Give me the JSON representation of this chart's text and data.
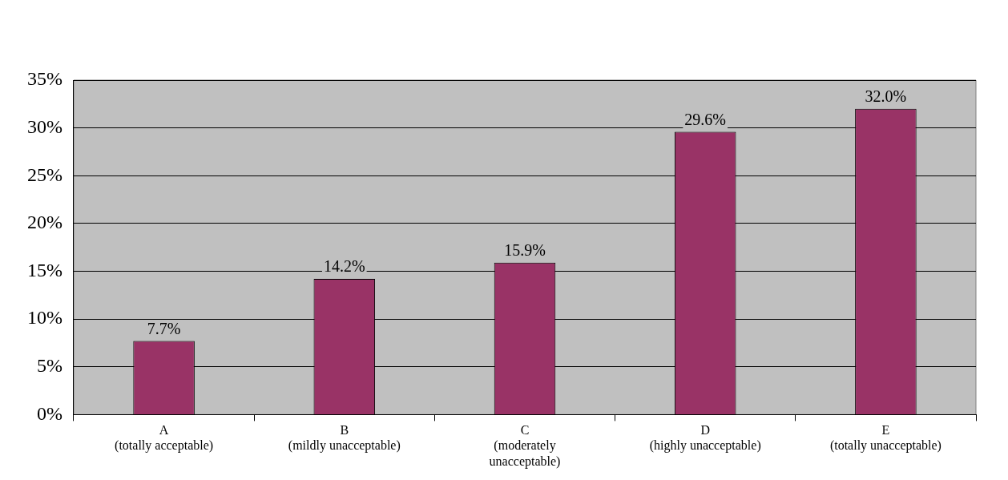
{
  "chart_data": {
    "type": "bar",
    "categories": [
      "A\n(totally acceptable)",
      "B\n(mildly unacceptable)",
      "C\n(moderately\nunacceptable)",
      "D\n(highly unacceptable)",
      "E\n(totally unacceptable)"
    ],
    "values": [
      7.7,
      14.2,
      15.9,
      29.6,
      32.0
    ],
    "value_labels": [
      "7.7%",
      "14.2%",
      "15.9%",
      "29.6%",
      "32.0%"
    ],
    "color": "#993366",
    "ylim": [
      0,
      35
    ],
    "yticks": [
      {
        "value": 0,
        "label": "0%"
      },
      {
        "value": 5,
        "label": "5%"
      },
      {
        "value": 10,
        "label": "10%"
      },
      {
        "value": 15,
        "label": "15%"
      },
      {
        "value": 20,
        "label": "20%"
      },
      {
        "value": 25,
        "label": "25%"
      },
      {
        "value": 30,
        "label": "30%"
      },
      {
        "value": 35,
        "label": "35%"
      }
    ],
    "grid": "y",
    "legend": false
  }
}
